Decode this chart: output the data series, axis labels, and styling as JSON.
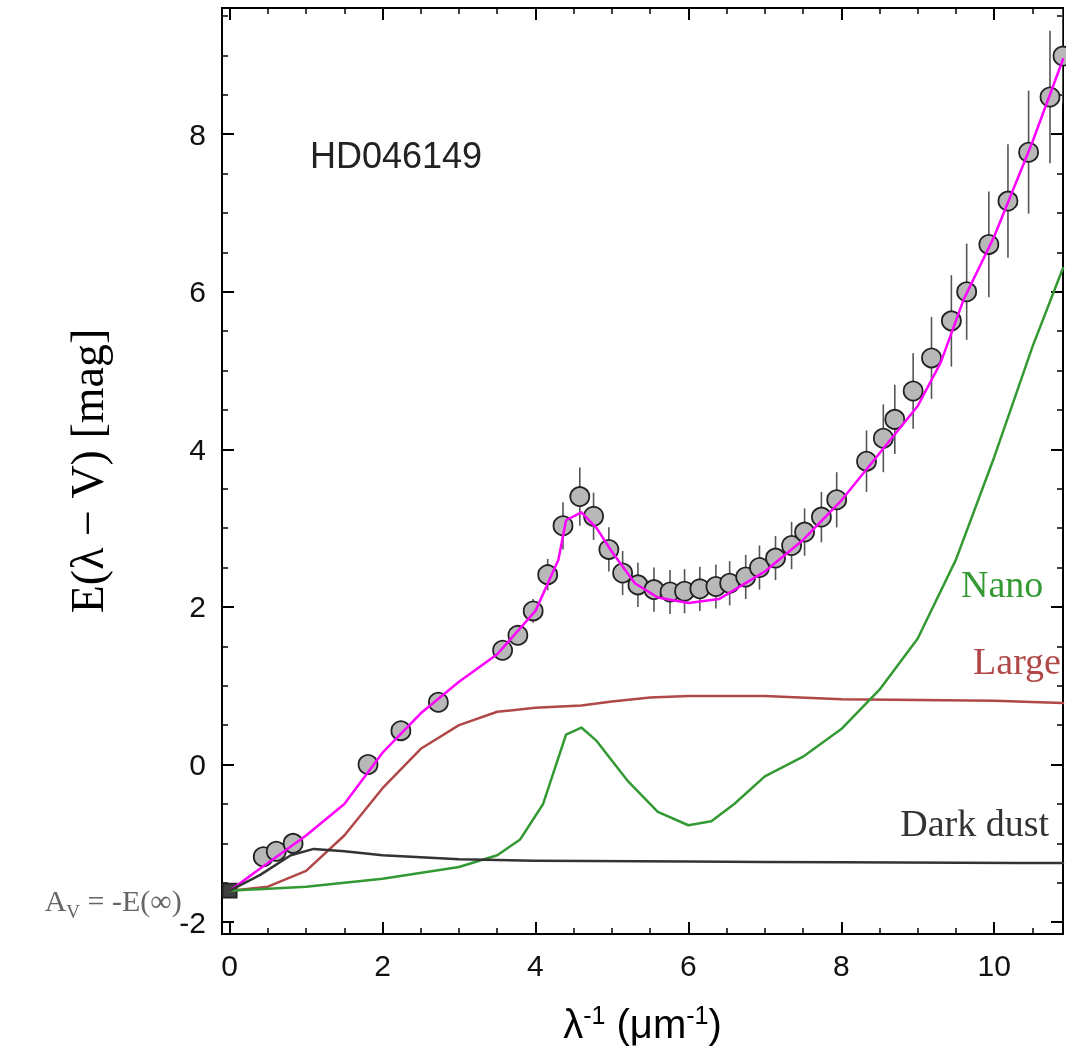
{
  "chart_data": {
    "type": "line",
    "title": "HD046149",
    "xlabel": "λ$^{-1}$ (μm$^{-1}$)",
    "ylabel": "E(λ − V) [mag]",
    "annotations": [
      {
        "text": "A$_{V}$ = -E(∞)",
        "x": 0,
        "y": -1.6
      }
    ],
    "xlim": [
      -0.1,
      10.9
    ],
    "ylim": [
      -2.15,
      9.6
    ],
    "xticks": [
      0,
      {
        "value": 0.5,
        "label": null
      },
      {
        "value": 1,
        "label": null
      },
      {
        "value": 1.5,
        "label": null
      },
      2,
      {
        "value": 2.5,
        "label": null
      },
      {
        "value": 3,
        "label": null
      },
      {
        "value": 3.5,
        "label": null
      },
      4,
      {
        "value": 4.5,
        "label": null
      },
      {
        "value": 5,
        "label": null
      },
      {
        "value": 5.5,
        "label": null
      },
      6,
      {
        "value": 6.5,
        "label": null
      },
      {
        "value": 7,
        "label": null
      },
      {
        "value": 7.5,
        "label": null
      },
      8,
      {
        "value": 8.5,
        "label": null
      },
      {
        "value": 9,
        "label": null
      },
      {
        "value": 9.5,
        "label": null
      },
      10,
      {
        "value": 10.5,
        "label": null
      }
    ],
    "yticks": [
      -2,
      {
        "value": -1.5,
        "label": null
      },
      {
        "value": -1,
        "label": null
      },
      {
        "value": -0.5,
        "label": null
      },
      0,
      {
        "value": 0.5,
        "label": null
      },
      {
        "value": 1,
        "label": null
      },
      {
        "value": 1.5,
        "label": null
      },
      2,
      {
        "value": 2.5,
        "label": null
      },
      {
        "value": 3,
        "label": null
      },
      {
        "value": 3.5,
        "label": null
      },
      4,
      {
        "value": 4.5,
        "label": null
      },
      {
        "value": 5,
        "label": null
      },
      {
        "value": 5.5,
        "label": null
      },
      6,
      {
        "value": 6.5,
        "label": null
      },
      {
        "value": 7,
        "label": null
      },
      {
        "value": 7.5,
        "label": null
      },
      8,
      {
        "value": 8.5,
        "label": null
      },
      {
        "value": 9,
        "label": null
      },
      {
        "value": 9.5,
        "label": null
      }
    ],
    "series": [
      {
        "color": "#ff00ff",
        "marker": "none",
        "line_style": "solid",
        "x": [
          0,
          0.5,
          1,
          1.5,
          2,
          2.5,
          3,
          3.5,
          4,
          4.3,
          4.4,
          4.6,
          4.8,
          5,
          5.3,
          5.6,
          6,
          6.4,
          7,
          7.5,
          8,
          8.5,
          9,
          9.3,
          9.6,
          10,
          10.5,
          10.9
        ],
        "values": [
          -1.6,
          -1.25,
          -0.9,
          -0.5,
          0.15,
          0.65,
          1.05,
          1.4,
          1.95,
          2.6,
          3.1,
          3.2,
          3.0,
          2.7,
          2.3,
          2.12,
          2.05,
          2.1,
          2.45,
          2.85,
          3.35,
          3.95,
          4.55,
          5.1,
          5.9,
          6.7,
          7.9,
          8.95
        ]
      },
      {
        "name": "Large",
        "color": "#b04848",
        "marker": "none",
        "line_style": "solid",
        "x": [
          0,
          0.5,
          1,
          1.5,
          2,
          2.5,
          3,
          3.5,
          4,
          4.6,
          5,
          5.5,
          6,
          7,
          8,
          9,
          10,
          10.9
        ],
        "values": [
          -1.6,
          -1.55,
          -1.35,
          -0.9,
          -0.3,
          0.2,
          0.5,
          0.67,
          0.72,
          0.75,
          0.8,
          0.85,
          0.87,
          0.87,
          0.83,
          0.82,
          0.81,
          0.78
        ]
      },
      {
        "name": "Nano",
        "color": "#339933",
        "marker": "none",
        "line_style": "solid",
        "x": [
          0,
          1,
          2,
          3,
          3.5,
          3.8,
          4.1,
          4.4,
          4.6,
          4.8,
          5.2,
          5.6,
          6,
          6.3,
          6.6,
          7,
          7.5,
          8,
          8.5,
          9,
          9.5,
          10,
          10.5,
          10.9
        ],
        "values": [
          -1.6,
          -1.55,
          -1.45,
          -1.3,
          -1.15,
          -0.95,
          -0.5,
          0.38,
          0.47,
          0.3,
          -0.2,
          -0.6,
          -0.77,
          -0.72,
          -0.5,
          -0.15,
          0.1,
          0.45,
          0.95,
          1.6,
          2.6,
          3.9,
          5.3,
          6.3
        ]
      },
      {
        "name": "Dark dust",
        "color": "#333333",
        "marker": "none",
        "line_style": "solid",
        "x": [
          0,
          0.4,
          0.8,
          1.1,
          1.5,
          2,
          3,
          4,
          6,
          8,
          10.9
        ],
        "values": [
          -1.6,
          -1.4,
          -1.15,
          -1.07,
          -1.1,
          -1.15,
          -1.2,
          -1.22,
          -1.23,
          -1.24,
          -1.25
        ]
      },
      {
        "type": "scatter",
        "color": "#404040",
        "marker": "square",
        "x": [
          0
        ],
        "values": [
          -1.6
        ]
      },
      {
        "type": "scatter",
        "color": "#b8b8b8",
        "marker": "circle",
        "x": [
          0.44,
          0.61,
          0.83,
          1.81,
          2.24,
          2.73,
          3.57,
          3.77,
          3.97,
          4.16,
          4.36,
          4.58,
          4.76,
          4.96,
          5.14,
          5.34,
          5.55,
          5.76,
          5.95,
          6.15,
          6.36,
          6.54,
          6.75,
          6.93,
          7.14,
          7.35,
          7.52,
          7.74,
          7.94,
          8.33,
          8.55,
          8.7,
          8.94,
          9.18,
          9.44,
          9.64,
          9.93,
          10.18,
          10.45,
          10.73,
          10.9
        ],
        "values": [
          -1.17,
          -1.1,
          -1.0,
          0.0,
          0.43,
          0.79,
          1.45,
          1.64,
          1.95,
          2.41,
          3.03,
          3.4,
          3.15,
          2.73,
          2.43,
          2.28,
          2.22,
          2.19,
          2.2,
          2.23,
          2.26,
          2.3,
          2.38,
          2.5,
          2.62,
          2.78,
          2.95,
          3.14,
          3.36,
          3.85,
          4.14,
          4.38,
          4.74,
          5.16,
          5.63,
          6.0,
          6.6,
          7.15,
          7.77,
          8.47,
          8.99
        ],
        "errors": [
          null,
          null,
          null,
          null,
          null,
          null,
          0.1,
          0.12,
          0.15,
          0.2,
          0.3,
          0.37,
          0.3,
          0.28,
          0.28,
          0.28,
          0.28,
          0.28,
          0.28,
          0.28,
          0.28,
          0.28,
          0.28,
          0.28,
          0.28,
          0.3,
          0.3,
          0.32,
          0.35,
          0.39,
          0.43,
          0.44,
          0.48,
          0.52,
          0.58,
          0.61,
          0.67,
          0.72,
          0.78,
          0.84,
          0.6
        ]
      }
    ]
  }
}
